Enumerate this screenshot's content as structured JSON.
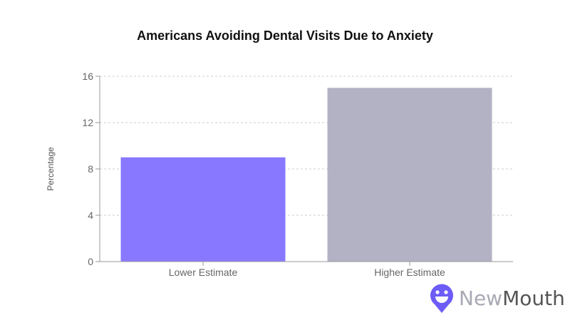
{
  "chart_data": {
    "type": "bar",
    "title": "Americans Avoiding Dental Visits Due to Anxiety",
    "xlabel": "",
    "ylabel": "Percentage",
    "categories": [
      "Lower Estimate",
      "Higher Estimate"
    ],
    "values": [
      9,
      15
    ],
    "colors": [
      "#8778ff",
      "#b3b2c4"
    ],
    "ylim": [
      0,
      16
    ],
    "yticks": [
      0,
      4,
      8,
      12,
      16
    ],
    "grid": true,
    "gridstyle": "dashed-horizontal",
    "legend": "none"
  },
  "logo": {
    "part1": "New",
    "part2": "Mouth",
    "color": "#6d5cf6"
  }
}
